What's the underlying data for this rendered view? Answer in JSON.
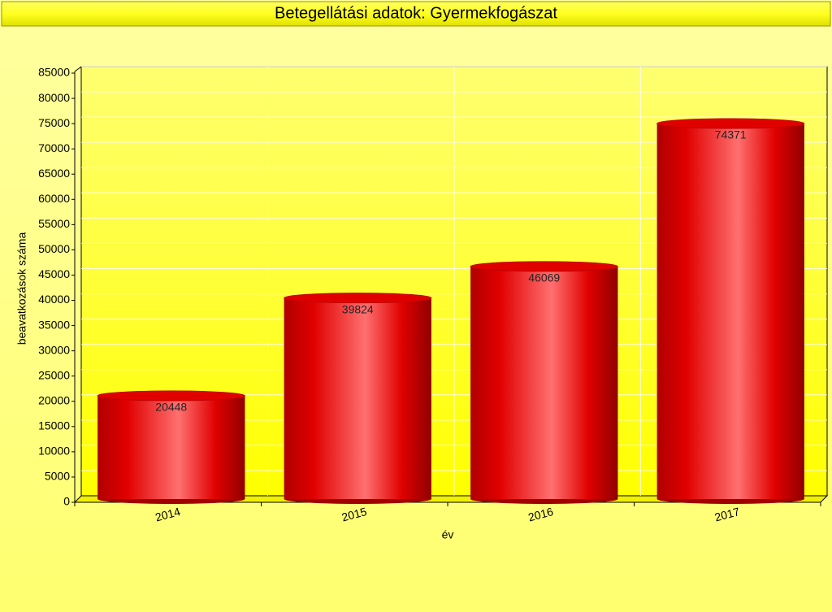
{
  "chart_data": {
    "type": "bar",
    "title": "Betegellátási adatok: Gyermekfogászat",
    "x_label": "év",
    "y_label": "beavatkozások száma",
    "categories": [
      "2014",
      "2015",
      "2016",
      "2017"
    ],
    "values": [
      20448,
      39824,
      46069,
      74371
    ],
    "color": "#e00000",
    "ylim": [
      0,
      85000
    ],
    "yticks": [
      0,
      5000,
      10000,
      15000,
      20000,
      25000,
      30000,
      35000,
      40000,
      45000,
      50000,
      55000,
      60000,
      65000,
      70000,
      75000,
      80000,
      85000
    ],
    "grid": true
  }
}
